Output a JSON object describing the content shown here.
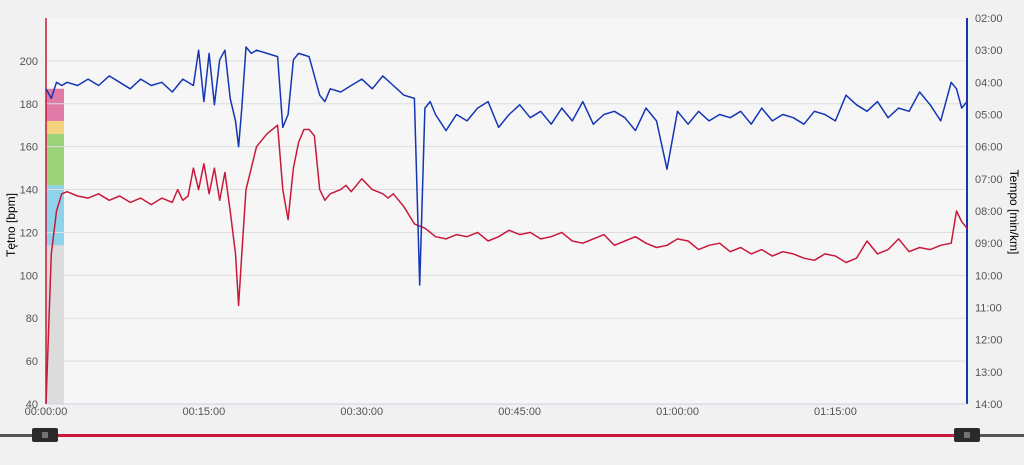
{
  "chart_data": {
    "type": "line",
    "xlabel": "",
    "x_ticks": [
      "00:00:00",
      "00:15:00",
      "00:30:00",
      "00:45:00",
      "01:00:00",
      "01:15:00"
    ],
    "x_tick_minutes": [
      0,
      15,
      30,
      45,
      60,
      75
    ],
    "x_range_minutes": [
      0,
      87.5
    ],
    "y_left": {
      "label": "Tętno [bpm]",
      "range": [
        40,
        220
      ],
      "ticks": [
        40,
        60,
        80,
        100,
        120,
        140,
        160,
        180,
        200
      ],
      "color": "#c8193c"
    },
    "y_right": {
      "label": "Tempo [min/km]",
      "range_min_per_km": [
        2,
        14
      ],
      "ticks": [
        "02:00",
        "03:00",
        "04:00",
        "05:00",
        "06:00",
        "07:00",
        "08:00",
        "09:00",
        "10:00",
        "11:00",
        "12:00",
        "13:00",
        "14:00"
      ],
      "tick_values": [
        2,
        3,
        4,
        5,
        6,
        7,
        8,
        9,
        10,
        11,
        12,
        13,
        14
      ],
      "color": "#1436b4"
    },
    "grid": true,
    "heart_rate_zones": [
      {
        "from": 40,
        "to": 114,
        "color": "#dcdcdc"
      },
      {
        "from": 114,
        "to": 142,
        "color": "#8fd3ea"
      },
      {
        "from": 142,
        "to": 166,
        "color": "#9bd27a"
      },
      {
        "from": 166,
        "to": 172,
        "color": "#f4d27e"
      },
      {
        "from": 172,
        "to": 187,
        "color": "#e07aa6"
      }
    ],
    "series": [
      {
        "axis": "left",
        "color": "#c8193c",
        "x": [
          0,
          0.5,
          1,
          1.5,
          2,
          3,
          4,
          5,
          6,
          7,
          8,
          9,
          10,
          11,
          12,
          12.5,
          13,
          13.5,
          14,
          14.5,
          15,
          15.5,
          16,
          16.5,
          17,
          17.5,
          18,
          18.3,
          18.6,
          19,
          19.5,
          20,
          21,
          22,
          22.5,
          23,
          23.5,
          24,
          24.5,
          25,
          25.5,
          26,
          26.5,
          27,
          28,
          28.5,
          29,
          30,
          31,
          32,
          32.5,
          33,
          34,
          35,
          36,
          36.5,
          37,
          38,
          39,
          40,
          41,
          42,
          43,
          44,
          45,
          46,
          47,
          48,
          49,
          50,
          51,
          52,
          53,
          54,
          55,
          56,
          57,
          58,
          59,
          60,
          61,
          62,
          63,
          64,
          65,
          66,
          67,
          68,
          69,
          70,
          71,
          72,
          73,
          74,
          75,
          76,
          77,
          78,
          79,
          80,
          81,
          82,
          83,
          84,
          85,
          86,
          86.5,
          87,
          87.5
        ],
        "values": [
          40,
          110,
          130,
          138,
          139,
          137,
          136,
          138,
          135,
          137,
          134,
          136,
          133,
          136,
          134,
          140,
          135,
          137,
          150,
          140,
          152,
          138,
          150,
          135,
          148,
          130,
          110,
          86,
          110,
          140,
          150,
          160,
          166,
          170,
          140,
          126,
          150,
          162,
          168,
          168,
          165,
          140,
          135,
          138,
          140,
          142,
          139,
          145,
          140,
          138,
          136,
          138,
          132,
          124,
          122,
          120,
          118,
          117,
          119,
          118,
          120,
          116,
          118,
          121,
          119,
          120,
          117,
          118,
          120,
          116,
          115,
          117,
          119,
          114,
          116,
          118,
          115,
          113,
          114,
          117,
          116,
          112,
          114,
          115,
          111,
          113,
          110,
          112,
          109,
          111,
          110,
          108,
          107,
          110,
          109,
          106,
          108,
          116,
          110,
          112,
          117,
          111,
          113,
          112,
          114,
          115,
          130,
          125,
          122
        ]
      },
      {
        "axis": "right",
        "color": "#1436b4",
        "x": [
          0,
          0.5,
          1,
          1.5,
          2,
          3,
          4,
          5,
          6,
          7,
          8,
          9,
          10,
          11,
          12,
          13,
          14,
          14.5,
          15,
          15.5,
          16,
          16.5,
          17,
          17.5,
          18,
          18.3,
          18.6,
          19,
          19.5,
          20,
          21,
          22,
          22.5,
          23,
          23.5,
          24,
          25,
          26,
          26.5,
          27,
          28,
          29,
          30,
          31,
          32,
          33,
          34,
          35,
          35.5,
          36,
          36.5,
          37,
          38,
          39,
          40,
          41,
          42,
          43,
          44,
          45,
          46,
          47,
          48,
          49,
          50,
          51,
          52,
          53,
          54,
          55,
          56,
          57,
          58,
          59,
          60,
          61,
          62,
          63,
          64,
          65,
          66,
          67,
          68,
          69,
          70,
          71,
          72,
          73,
          74,
          75,
          76,
          77,
          78,
          79,
          80,
          81,
          82,
          83,
          84,
          85,
          86,
          86.5,
          87,
          87.5
        ],
        "values": [
          4.2,
          4.5,
          4.0,
          4.1,
          4.0,
          4.1,
          3.9,
          4.1,
          3.8,
          4.0,
          4.2,
          3.9,
          4.1,
          4.0,
          4.3,
          3.9,
          4.1,
          3.0,
          4.6,
          3.1,
          4.7,
          3.3,
          3.0,
          4.5,
          5.2,
          6.0,
          4.8,
          2.9,
          3.1,
          3.0,
          3.1,
          3.2,
          5.4,
          5.0,
          3.3,
          3.1,
          3.2,
          4.4,
          4.6,
          4.2,
          4.3,
          4.1,
          3.9,
          4.2,
          3.8,
          4.1,
          4.4,
          4.5,
          10.3,
          4.8,
          4.6,
          5.0,
          5.5,
          5.0,
          5.2,
          4.8,
          4.6,
          5.4,
          5.0,
          4.7,
          5.1,
          4.9,
          5.3,
          4.8,
          5.2,
          4.6,
          5.3,
          5.0,
          4.9,
          5.1,
          5.5,
          4.8,
          5.2,
          6.7,
          4.9,
          5.3,
          4.9,
          5.2,
          5.0,
          5.1,
          4.9,
          5.3,
          4.8,
          5.2,
          5.0,
          5.1,
          5.3,
          4.9,
          5.0,
          5.2,
          4.4,
          4.7,
          4.9,
          4.6,
          5.1,
          4.8,
          4.9,
          4.3,
          4.7,
          5.2,
          4.0,
          4.2,
          4.8,
          4.6
        ]
      }
    ]
  }
}
